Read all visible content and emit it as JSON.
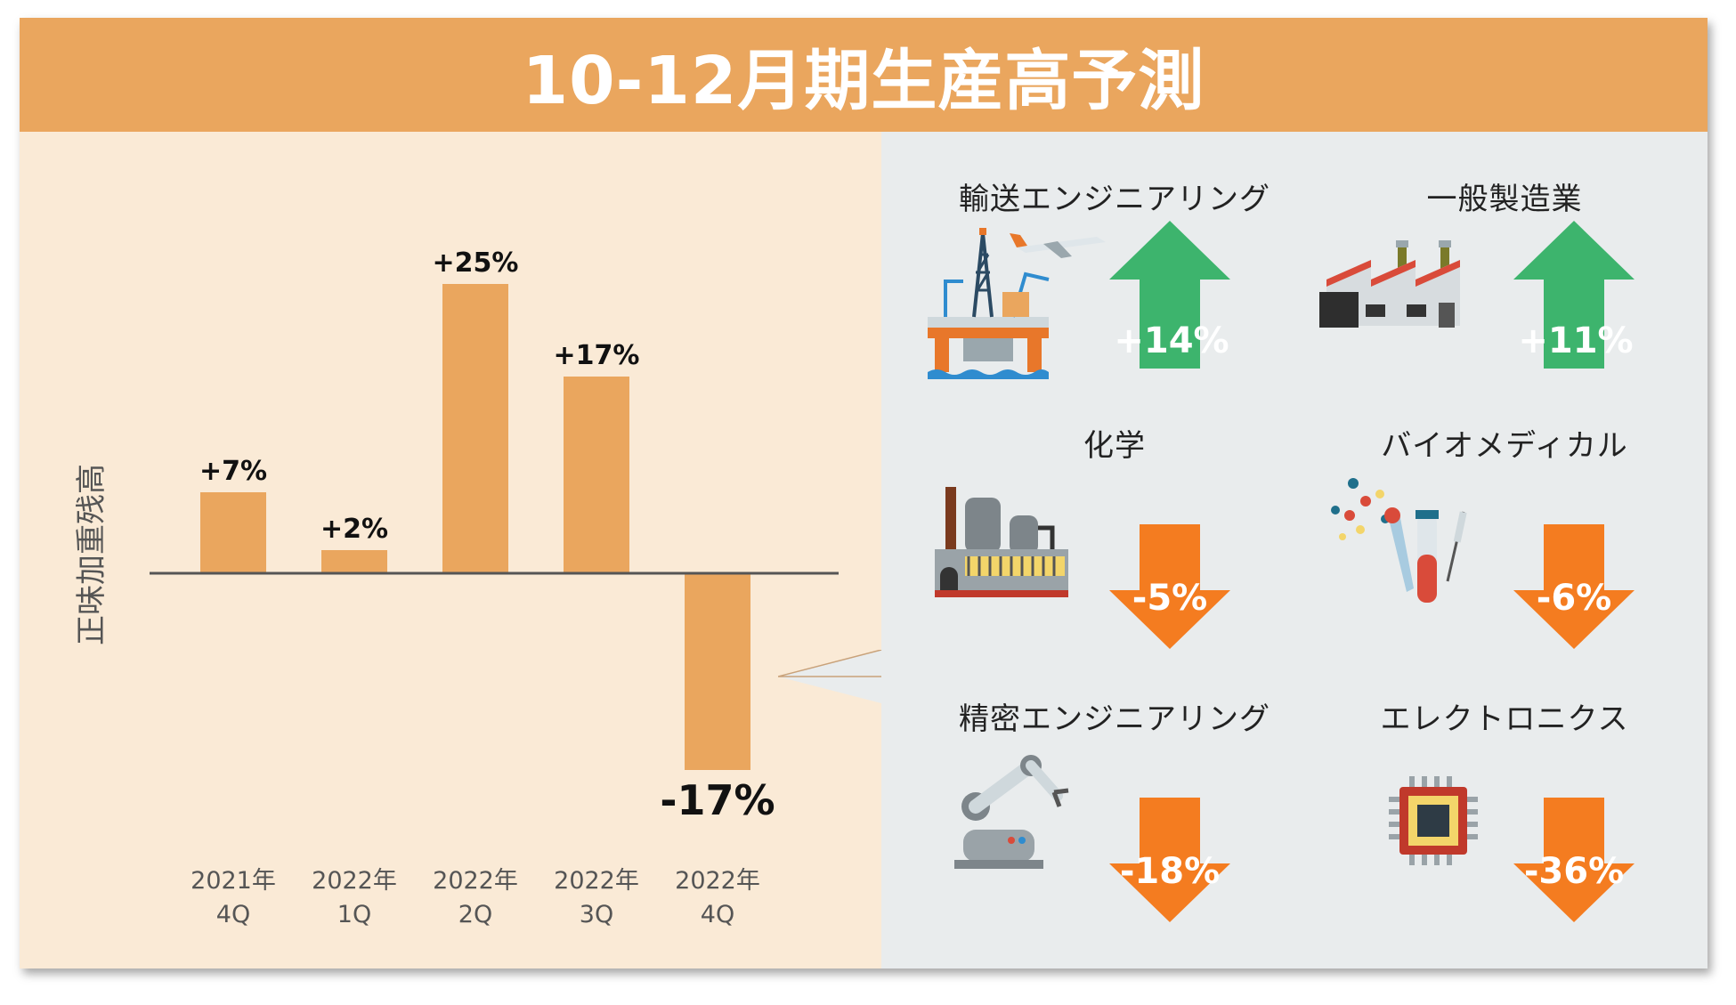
{
  "title": "10-12月期生産高予測",
  "colors": {
    "header": "#eaa65e",
    "bar": "#eaa65e",
    "left_bg": "#faead6",
    "right_bg": "#e9eced",
    "up": "#3db46d",
    "down": "#f47c20"
  },
  "chart_data": {
    "type": "bar",
    "ylabel": "正味加重残高",
    "categories": [
      {
        "year": "2021年",
        "quarter": "4Q"
      },
      {
        "year": "2022年",
        "quarter": "1Q"
      },
      {
        "year": "2022年",
        "quarter": "2Q"
      },
      {
        "year": "2022年",
        "quarter": "3Q"
      },
      {
        "year": "2022年",
        "quarter": "4Q"
      }
    ],
    "values": [
      7,
      2,
      25,
      17,
      -17
    ],
    "labels": [
      "+7%",
      "+2%",
      "+25%",
      "+17%",
      "-17%"
    ],
    "highlight_index": 4,
    "grid": false
  },
  "sectors": [
    {
      "name": "輸送エンジニアリング",
      "value": "+14%",
      "direction": "up",
      "icon": "oil-rig-airplane-icon"
    },
    {
      "name": "一般製造業",
      "value": "+11%",
      "direction": "up",
      "icon": "factory-icon"
    },
    {
      "name": "化学",
      "value": "-5%",
      "direction": "down",
      "icon": "chemical-plant-icon"
    },
    {
      "name": "バイオメディカル",
      "value": "-6%",
      "direction": "down",
      "icon": "lab-test-tubes-icon"
    },
    {
      "name": "精密エンジニアリング",
      "value": "-18%",
      "direction": "down",
      "icon": "robot-arm-icon"
    },
    {
      "name": "エレクトロニクス",
      "value": "-36%",
      "direction": "down",
      "icon": "microchip-icon"
    }
  ]
}
